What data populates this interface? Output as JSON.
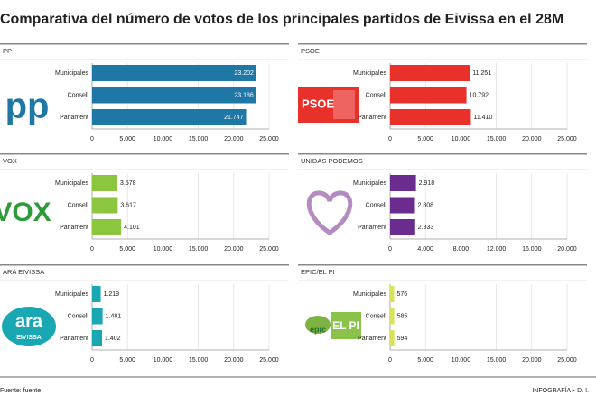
{
  "title": "Comparativa del número de votos de los principales partidos de Eivissa en el 28M",
  "source": "Fuente: fuente",
  "credit": "INFOGRAFÍA ▸ D. I.",
  "chart_data": [
    {
      "type": "bar",
      "title": "PP",
      "logo": [
        "pp"
      ],
      "color": "#1f77a6",
      "categories": [
        "Municipales",
        "Consell",
        "Parlament"
      ],
      "values": [
        23202,
        23186,
        21747
      ],
      "value_labels": [
        "23.202",
        "23.186",
        "21.747"
      ],
      "xlim": [
        0,
        25000
      ],
      "xticks": [
        0,
        {
          "value": 5000,
          "label": "5.000"
        },
        {
          "value": 10000,
          "label": "10.000"
        },
        {
          "value": 15000,
          "label": "15.000"
        },
        {
          "value": 20000,
          "label": "20.000"
        },
        {
          "value": 25000,
          "label": "25.000"
        }
      ],
      "grid": true
    },
    {
      "type": "bar",
      "title": "PSOE",
      "logo": [
        "PSOE"
      ],
      "color": "#e8312b",
      "categories": [
        "Municipales",
        "Consell",
        "Parlament"
      ],
      "values": [
        11251,
        10792,
        11410
      ],
      "value_labels": [
        "11.251",
        "10.792",
        "11.410"
      ],
      "xlim": [
        0,
        25000
      ],
      "xticks": [
        0,
        {
          "value": 5000,
          "label": "5.000"
        },
        {
          "value": 10000,
          "label": "10.000"
        },
        {
          "value": 15000,
          "label": "15.000"
        },
        {
          "value": 20000,
          "label": "20.000"
        },
        {
          "value": 25000,
          "label": "25.000"
        }
      ],
      "grid": true
    },
    {
      "type": "bar",
      "title": "VOX",
      "logo": [
        "VOX"
      ],
      "color": "#8cc63e",
      "categories": [
        "Municipales",
        "Consell",
        "Parlament"
      ],
      "values": [
        3578,
        3617,
        4101
      ],
      "value_labels": [
        "3.578",
        "3.617",
        "4.101"
      ],
      "xlim": [
        0,
        25000
      ],
      "xticks": [
        0,
        {
          "value": 5000,
          "label": "5.000"
        },
        {
          "value": 10000,
          "label": "10.000"
        },
        {
          "value": 15000,
          "label": "15.000"
        },
        {
          "value": 20000,
          "label": "20.000"
        },
        {
          "value": 25000,
          "label": "25.000"
        }
      ],
      "grid": true
    },
    {
      "type": "bar",
      "title": "UNIDAS PODEMOS",
      "color": "#6a2c8f",
      "categories": [
        "Municipales",
        "Consell",
        "Parlament"
      ],
      "values": [
        2918,
        2808,
        2833
      ],
      "value_labels": [
        "2.918",
        "2.808",
        "2.833"
      ],
      "xlim": [
        0,
        20000
      ],
      "xticks": [
        0,
        {
          "value": 4000,
          "label": "4.000"
        },
        {
          "value": 8000,
          "label": "8.000"
        },
        {
          "value": 12000,
          "label": "12.000"
        },
        {
          "value": 16000,
          "label": "16.000"
        },
        {
          "value": 20000,
          "label": "20.000"
        }
      ],
      "grid": true
    },
    {
      "type": "bar",
      "title": "ARA EIVISSA",
      "logo": [
        "ara",
        "EIVISSA"
      ],
      "color": "#19a7b3",
      "categories": [
        "Municipales",
        "Consell",
        "Parlament"
      ],
      "values": [
        1219,
        1481,
        1402
      ],
      "value_labels": [
        "1.219",
        "1.481",
        "1.402"
      ],
      "xlim": [
        0,
        25000
      ],
      "xticks": [
        0,
        {
          "value": 5000,
          "label": "5.000"
        },
        {
          "value": 10000,
          "label": "10.000"
        },
        {
          "value": 15000,
          "label": "15.000"
        },
        {
          "value": 20000,
          "label": "20.000"
        },
        {
          "value": 25000,
          "label": "25.000"
        }
      ],
      "grid": true
    },
    {
      "type": "bar",
      "title": "EPIC/EL PI",
      "logo": [
        "epic",
        "EL PI"
      ],
      "color": "#d8e35a",
      "categories": [
        "Municipales",
        "Consell",
        "Parlament"
      ],
      "values": [
        576,
        585,
        594
      ],
      "xlim": [
        0,
        25000
      ],
      "xticks": [
        0,
        {
          "value": 5000,
          "label": "5.000"
        },
        {
          "value": 10000,
          "label": "10.000"
        },
        {
          "value": 15000,
          "label": "15.000"
        },
        {
          "value": 20000,
          "label": "20.000"
        },
        {
          "value": 25000,
          "label": "25.000"
        }
      ],
      "grid": true
    }
  ]
}
